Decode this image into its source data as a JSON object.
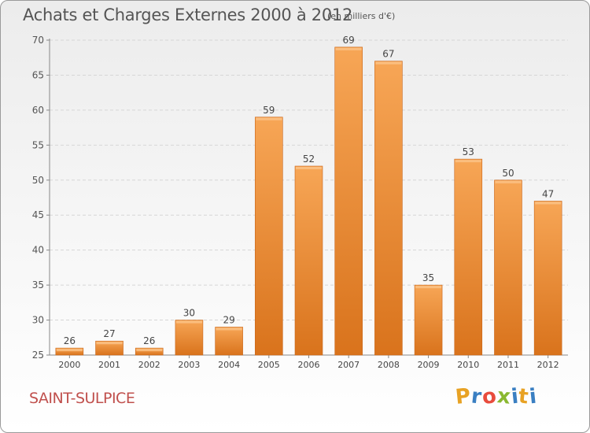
{
  "chart_data": {
    "type": "bar",
    "title": "Achats et Charges Externes 2000 à 2012",
    "subtitle": "(en milliers d'€)",
    "categories": [
      "2000",
      "2001",
      "2002",
      "2003",
      "2004",
      "2005",
      "2006",
      "2007",
      "2008",
      "2009",
      "2010",
      "2011",
      "2012"
    ],
    "values": [
      26,
      27,
      26,
      30,
      29,
      59,
      52,
      69,
      67,
      35,
      53,
      50,
      47
    ],
    "ylim": [
      25,
      70
    ],
    "yticks": [
      25,
      30,
      35,
      40,
      45,
      50,
      55,
      60,
      65,
      70
    ],
    "grid": true,
    "bar_color_top": "#f7a656",
    "bar_color_bottom": "#d9731c"
  },
  "footer": {
    "commune": "SAINT-SULPICE",
    "logo_letters": [
      "P",
      "r",
      "o",
      "x",
      "i",
      "t",
      "i"
    ],
    "logo_colors": [
      "#e8a224",
      "#3a7fc2",
      "#e84c3d",
      "#8ab830",
      "#3a7fc2",
      "#e8a224",
      "#3a7fc2"
    ]
  }
}
